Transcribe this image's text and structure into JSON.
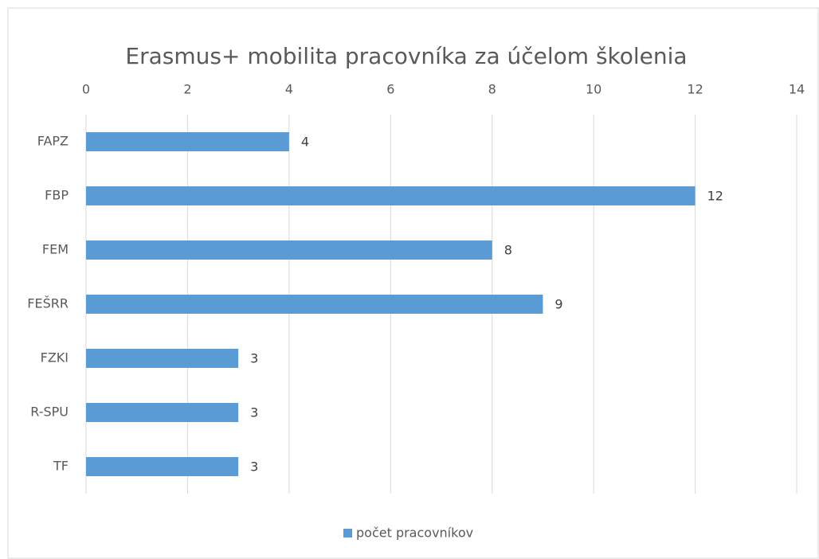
{
  "chart_data": {
    "type": "bar",
    "orientation": "horizontal",
    "title": "Erasmus+ mobilita pracovníka za účelom školenia",
    "categories": [
      "FAPZ",
      "FBP",
      "FEM",
      "FEŠRR",
      "FZKI",
      "R-SPU",
      "TF"
    ],
    "series": [
      {
        "name": "počet pracovníkov",
        "color": "#5b9bd5",
        "values": [
          4,
          12,
          8,
          9,
          3,
          3,
          3
        ]
      }
    ],
    "xlim": [
      0,
      14
    ],
    "xticks": [
      0,
      2,
      4,
      6,
      8,
      10,
      12,
      14
    ],
    "grid": true,
    "legend": "bottom",
    "data_labels": true
  }
}
